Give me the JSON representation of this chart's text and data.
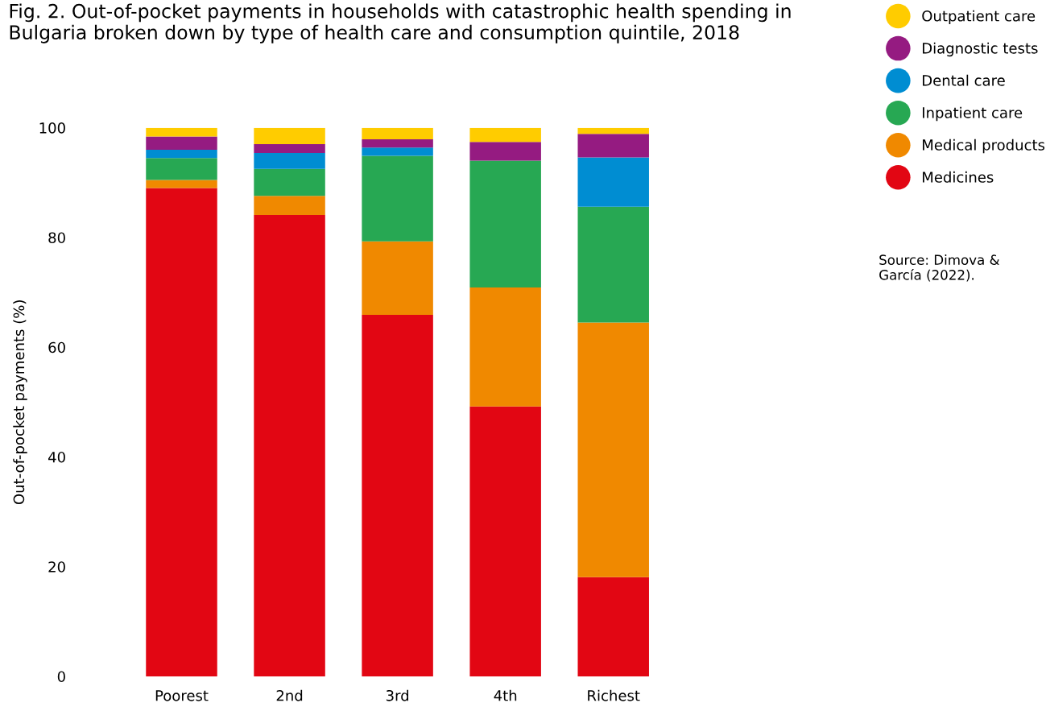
{
  "chart_data": {
    "type": "bar",
    "stacked": true,
    "title": "Fig. 2. Out-of-pocket payments in households with catastrophic health spending in Bulgaria broken down by type of health care and consumption quintile, 2018",
    "ylabel": "Out-of-pocket payments (%)",
    "categories": [
      "Poorest",
      "2nd",
      "3rd",
      "4th",
      "Richest"
    ],
    "series": [
      {
        "name": "Medicines",
        "color": "#e20613",
        "values": [
          89.0,
          84.1,
          65.9,
          49.2,
          18.1
        ]
      },
      {
        "name": "Medical products",
        "color": "#f08900",
        "values": [
          1.5,
          3.5,
          13.4,
          21.7,
          46.4
        ]
      },
      {
        "name": "Inpatient care",
        "color": "#27a853",
        "values": [
          4.0,
          4.9,
          15.6,
          23.1,
          21.1
        ]
      },
      {
        "name": "Dental care",
        "color": "#008dd2",
        "values": [
          1.5,
          2.9,
          1.5,
          0,
          9.0
        ]
      },
      {
        "name": "Diagnostic tests",
        "color": "#951b81",
        "values": [
          2.4,
          1.6,
          1.5,
          3.4,
          4.3
        ]
      },
      {
        "name": "Outpatient care",
        "color": "#ffcc00",
        "values": [
          1.6,
          3.0,
          2.1,
          2.6,
          1.1
        ]
      }
    ],
    "ylim": [
      0,
      100
    ],
    "yticks": [
      0,
      20,
      40,
      60,
      80,
      100
    ],
    "grid": false,
    "legend": "right",
    "annotations": [
      "Source: Dimova & García (2022)."
    ]
  }
}
